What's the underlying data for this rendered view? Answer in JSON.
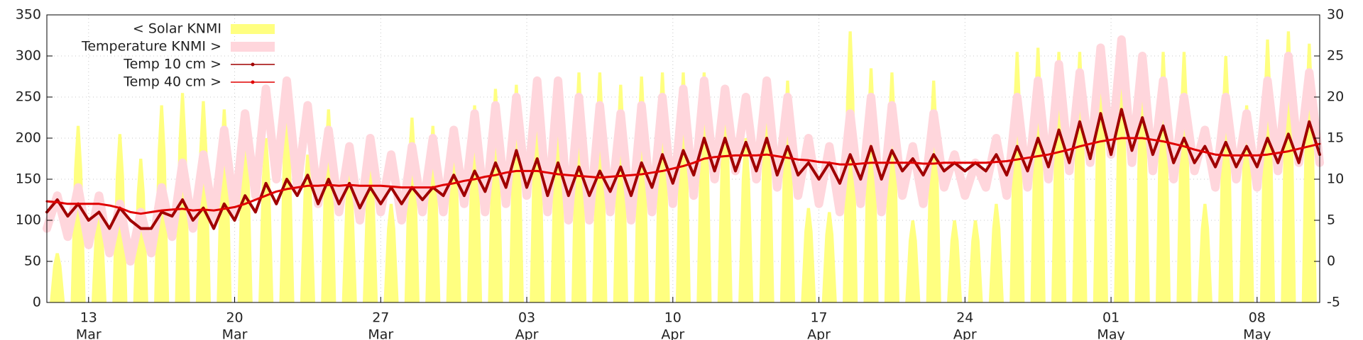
{
  "chart_data": {
    "type": "line",
    "xlim": [
      11,
      72
    ],
    "xticks": [
      13,
      20,
      27,
      {
        "value": 34,
        "label": "03"
      },
      {
        "value": 41,
        "label": "10"
      },
      {
        "value": 48,
        "label": "17"
      },
      {
        "value": 55,
        "label": "24"
      },
      {
        "value": 62,
        "label": "01"
      },
      {
        "value": 69,
        "label": "08"
      }
    ],
    "xtick_months": [
      "Mar",
      "Mar",
      "Mar",
      "Apr",
      "Apr",
      "Apr",
      "Apr",
      "May",
      "May"
    ],
    "ylim": [
      0,
      350
    ],
    "yticks": [
      0,
      50,
      100,
      150,
      200,
      250,
      300,
      350
    ],
    "y2lim": [
      -5,
      30
    ],
    "y2ticks": [
      -5,
      0,
      5,
      10,
      15,
      20,
      25,
      30
    ],
    "y2_color": "#0000ee",
    "grid": true,
    "legend": "upper left",
    "x": [
      11,
      11.5,
      12,
      12.5,
      13,
      13.5,
      14,
      14.5,
      15,
      15.5,
      16,
      16.5,
      17,
      17.5,
      18,
      18.5,
      19,
      19.5,
      20,
      20.5,
      21,
      21.5,
      22,
      22.5,
      23,
      23.5,
      24,
      24.5,
      25,
      25.5,
      26,
      26.5,
      27,
      27.5,
      28,
      28.5,
      29,
      29.5,
      30,
      30.5,
      31,
      31.5,
      32,
      32.5,
      33,
      33.5,
      34,
      34.5,
      35,
      35.5,
      36,
      36.5,
      37,
      37.5,
      38,
      38.5,
      39,
      39.5,
      40,
      40.5,
      41,
      41.5,
      42,
      42.5,
      43,
      43.5,
      44,
      44.5,
      45,
      45.5,
      46,
      46.5,
      47,
      47.5,
      48,
      48.5,
      49,
      49.5,
      50,
      50.5,
      51,
      51.5,
      52,
      52.5,
      53,
      53.5,
      54,
      54.5,
      55,
      55.5,
      56,
      56.5,
      57,
      57.5,
      58,
      58.5,
      59,
      59.5,
      60,
      60.5,
      61,
      61.5,
      62,
      62.5,
      63,
      63.5,
      64,
      64.5,
      65,
      65.5,
      66,
      66.5,
      67,
      67.5,
      68,
      68.5,
      69,
      69.5,
      70,
      70.5,
      71,
      71.5,
      72
    ],
    "series": [
      {
        "name": "< Solar KNMI",
        "type": "area",
        "color": "#ffff80",
        "axis": "y",
        "x": [
          11.5,
          12.5,
          13.5,
          14.5,
          15.5,
          16.5,
          17.5,
          18.5,
          19.5,
          20.5,
          21.5,
          22.5,
          23.5,
          24.5,
          25.5,
          26.5,
          27.5,
          28.5,
          29.5,
          30.5,
          31.5,
          32.5,
          33.5,
          34.5,
          35.5,
          36.5,
          37.5,
          38.5,
          39.5,
          40.5,
          41.5,
          42.5,
          43.5,
          44.5,
          45.5,
          46.5,
          47.5,
          48.5,
          49.5,
          50.5,
          51.5,
          52.5,
          53.5,
          54.5,
          55.5,
          56.5,
          57.5,
          58.5,
          59.5,
          60.5,
          61.5,
          62.5,
          63.5,
          64.5,
          65.5,
          66.5,
          67.5,
          68.5,
          69.5,
          70.5,
          71.5
        ],
        "values": [
          60,
          215,
          120,
          205,
          175,
          240,
          255,
          245,
          235,
          230,
          200,
          230,
          180,
          235,
          160,
          180,
          120,
          225,
          215,
          210,
          240,
          260,
          265,
          265,
          270,
          280,
          280,
          265,
          275,
          280,
          280,
          280,
          250,
          200,
          270,
          270,
          115,
          110,
          330,
          285,
          280,
          100,
          270,
          100,
          100,
          120,
          305,
          310,
          305,
          305,
          305,
          290,
          290,
          305,
          305,
          120,
          300,
          240,
          320,
          330,
          315
        ]
      },
      {
        "name": "Temperature KNMI >",
        "type": "line",
        "color": "#ffd6dc",
        "axis": "y2",
        "values": [
          4,
          8,
          3,
          9,
          2,
          8,
          1,
          7,
          0,
          6,
          1,
          9,
          3,
          12,
          4,
          13,
          5,
          16,
          6,
          18,
          8,
          21,
          10,
          22,
          9,
          19,
          7,
          16,
          6,
          14,
          5,
          15,
          6,
          13,
          5,
          14,
          6,
          15,
          6,
          16,
          7,
          18,
          6,
          19,
          7,
          20,
          8,
          22,
          6,
          22,
          5,
          20,
          5,
          19,
          6,
          18,
          5,
          19,
          6,
          20,
          7,
          21,
          8,
          22,
          10,
          21,
          11,
          20,
          10,
          22,
          9,
          20,
          8,
          15,
          7,
          14,
          6,
          18,
          7,
          20,
          6,
          19,
          8,
          14,
          7,
          18,
          9,
          13,
          8,
          12,
          9,
          15,
          8,
          20,
          9,
          22,
          10,
          24,
          11,
          23,
          12,
          26,
          13,
          27,
          12,
          25,
          11,
          22,
          10,
          20,
          11,
          16,
          9,
          20,
          10,
          18,
          9,
          22,
          11,
          25,
          12,
          23,
          12
        ]
      },
      {
        "name": "Temp 10 cm >",
        "type": "line",
        "color": "#a00000",
        "axis": "y2",
        "values": [
          6,
          7.5,
          5.5,
          7,
          5,
          6,
          4,
          6.5,
          5,
          4,
          4,
          6,
          5.5,
          7.5,
          5,
          6.5,
          4,
          7,
          5,
          8,
          6,
          9.5,
          7,
          10,
          8,
          10.5,
          7,
          10,
          7,
          9.5,
          6.5,
          9,
          7,
          9,
          7,
          9,
          7.5,
          9,
          8,
          10.5,
          8,
          11,
          8.5,
          12,
          9,
          13.5,
          9,
          12.5,
          8,
          12,
          8,
          11.5,
          8,
          11,
          8.5,
          11.5,
          8,
          12,
          9,
          13,
          9.5,
          13.5,
          10.5,
          15,
          11,
          15,
          11,
          14.5,
          11,
          15,
          10.5,
          14,
          10.5,
          12,
          10,
          12,
          9.5,
          13,
          10,
          14,
          10,
          13.5,
          11,
          12.5,
          10.5,
          13,
          11,
          12,
          11,
          12,
          11,
          13,
          10.5,
          14,
          11,
          15,
          11.5,
          16,
          12,
          17,
          12.5,
          18,
          13,
          18.5,
          13.5,
          17.5,
          13,
          16.5,
          12,
          15,
          12,
          14,
          11.5,
          14.5,
          11.5,
          14,
          11.5,
          15,
          12,
          15.5,
          12,
          17,
          13
        ]
      },
      {
        "name": "Temp 40 cm >",
        "type": "line",
        "color": "#e00000",
        "axis": "y2",
        "values": [
          7.3,
          7.2,
          7,
          7,
          7,
          7,
          6.8,
          6.5,
          6,
          5.8,
          6,
          6.2,
          6.3,
          6.4,
          6.2,
          6.3,
          6.2,
          6.4,
          6.6,
          7,
          7.5,
          8,
          8.5,
          8.8,
          9,
          9.2,
          9.2,
          9.3,
          9.2,
          9.3,
          9.2,
          9.2,
          9.2,
          9.1,
          9,
          9,
          9,
          9,
          9.3,
          9.5,
          9.8,
          10,
          10.3,
          10.5,
          10.8,
          11,
          11,
          11,
          10.8,
          10.6,
          10.5,
          10.4,
          10.3,
          10.2,
          10.3,
          10.4,
          10.5,
          10.6,
          10.8,
          11,
          11.3,
          11.6,
          12,
          12.5,
          12.7,
          12.8,
          12.9,
          12.9,
          12.9,
          13,
          12.8,
          12.6,
          12.4,
          12.3,
          12.1,
          12,
          11.8,
          11.8,
          11.9,
          12,
          12,
          12,
          12,
          12,
          11.9,
          11.9,
          12,
          12,
          12,
          12,
          12,
          12.1,
          12.2,
          12.4,
          12.6,
          12.8,
          13,
          13.3,
          13.6,
          14,
          14.3,
          14.6,
          14.8,
          15,
          15,
          15,
          14.8,
          14.6,
          14.3,
          14,
          13.6,
          13.3,
          13,
          12.9,
          12.9,
          12.9,
          12.9,
          13,
          13.2,
          13.4,
          13.7,
          14,
          14.3
        ]
      }
    ]
  }
}
